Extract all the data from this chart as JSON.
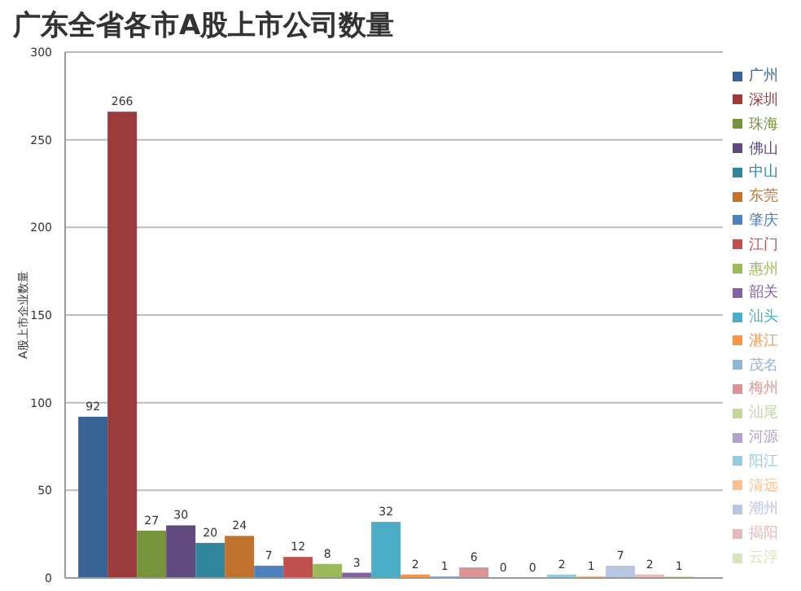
{
  "chart_data": {
    "type": "bar",
    "title": "广东全省各市A股上市公司数量",
    "ylabel": "A股上市企业数量",
    "categories": [
      null
    ],
    "series": [
      {
        "name": "广州",
        "color": "#3b6496",
        "values": [
          92
        ]
      },
      {
        "name": "深圳",
        "color": "#9b3b3b",
        "values": [
          266
        ]
      },
      {
        "name": "珠海",
        "color": "#77933c",
        "values": [
          27
        ]
      },
      {
        "name": "佛山",
        "color": "#604a7b",
        "values": [
          30
        ]
      },
      {
        "name": "中山",
        "color": "#31859c",
        "values": [
          20
        ]
      },
      {
        "name": "东莞",
        "color": "#c0722f",
        "values": [
          24
        ]
      },
      {
        "name": "肇庆",
        "color": "#4f81bd",
        "values": [
          7
        ]
      },
      {
        "name": "江门",
        "color": "#c0504d",
        "values": [
          12
        ]
      },
      {
        "name": "惠州",
        "color": "#9bbb59",
        "values": [
          8
        ]
      },
      {
        "name": "韶关",
        "color": "#8064a2",
        "values": [
          3
        ]
      },
      {
        "name": "汕头",
        "color": "#4bacc6",
        "values": [
          32
        ]
      },
      {
        "name": "湛江",
        "color": "#f79646",
        "values": [
          2
        ]
      },
      {
        "name": "茂名",
        "color": "#95b3d7",
        "values": [
          1
        ]
      },
      {
        "name": "梅州",
        "color": "#d99694",
        "values": [
          6
        ]
      },
      {
        "name": "汕尾",
        "color": "#c3d69b",
        "values": [
          0
        ]
      },
      {
        "name": "河源",
        "color": "#b3a2c7",
        "values": [
          0
        ]
      },
      {
        "name": "阳江",
        "color": "#93cddd",
        "values": [
          2
        ]
      },
      {
        "name": "清远",
        "color": "#fac090",
        "values": [
          1
        ]
      },
      {
        "name": "潮州",
        "color": "#b9c6e0",
        "values": [
          7
        ]
      },
      {
        "name": "揭阳",
        "color": "#e6b9b8",
        "values": [
          2
        ]
      },
      {
        "name": "云浮",
        "color": "#d7e4bd",
        "values": [
          1
        ]
      }
    ],
    "ylim": [
      0,
      300
    ],
    "yticks": [
      0,
      50,
      100,
      150,
      200,
      250,
      300
    ],
    "grid": "y",
    "legend": "right",
    "data_labels": true
  }
}
